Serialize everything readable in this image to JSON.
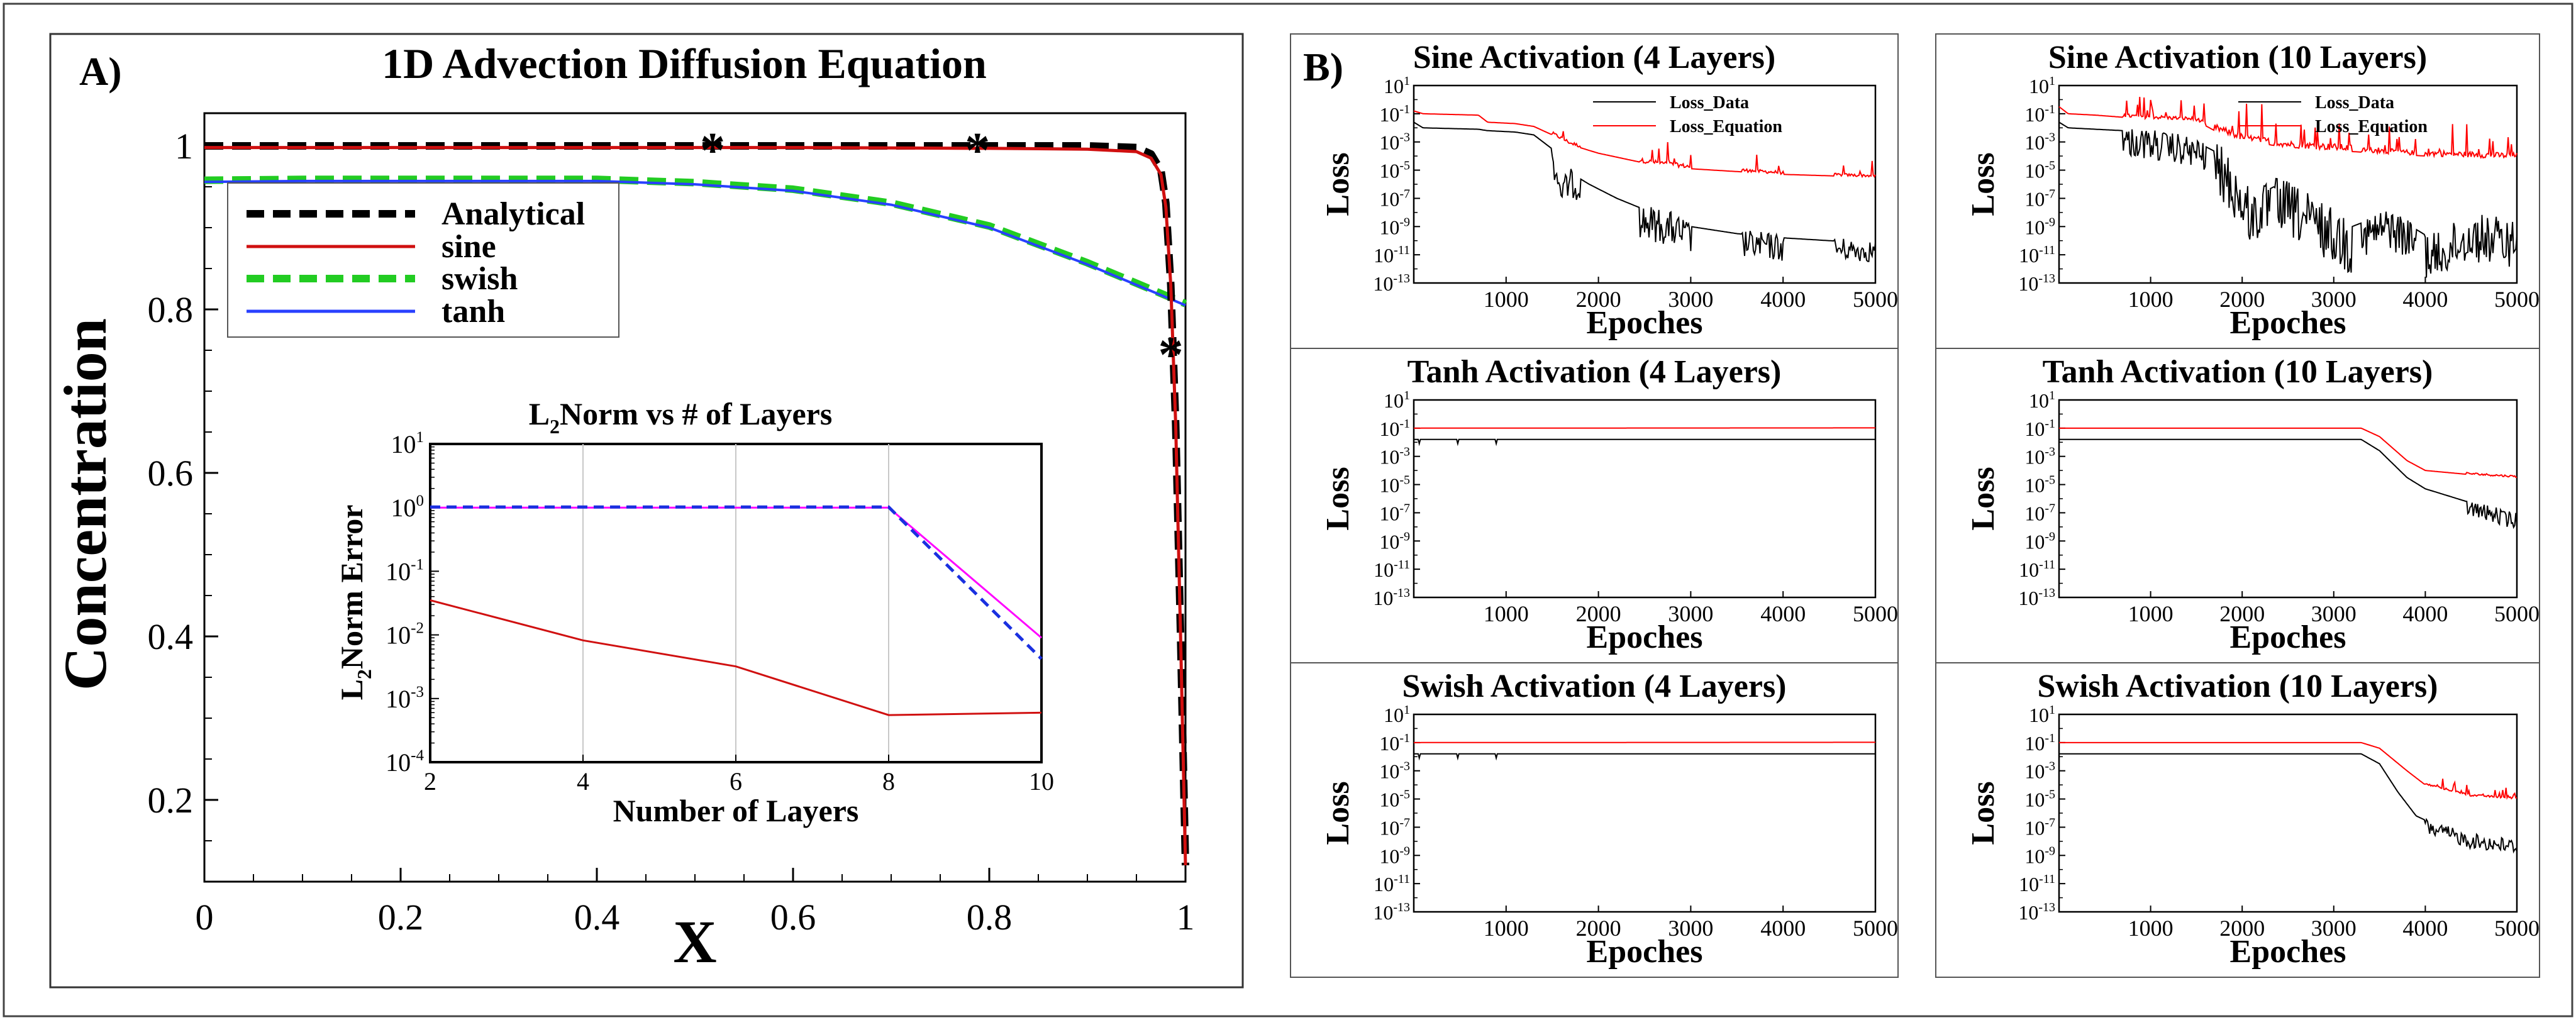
{
  "figure": {
    "panel_a_label": "A)",
    "panel_b_label": "B)"
  },
  "chart_data": [
    {
      "type": "line",
      "title": "1D Advection Diffusion Equation",
      "xlabel": "X",
      "ylabel": "Concentration",
      "xlim": [
        0,
        1
      ],
      "ylim": [
        0.1,
        1.04
      ],
      "xticks": [
        "0",
        "0.2",
        "0.4",
        "0.6",
        "0.8",
        "1"
      ],
      "xtick_values": [
        0,
        0.2,
        0.4,
        0.6,
        0.8,
        1
      ],
      "yticks": [
        "0.2",
        "0.4",
        "0.6",
        "0.8",
        "1"
      ],
      "ytick_values": [
        0.2,
        0.4,
        0.6,
        0.8,
        1
      ],
      "legend_position": "top-left",
      "series": [
        {
          "name": "Analytical",
          "color": "#000000",
          "dashed": true,
          "x": [
            0,
            0.2,
            0.4,
            0.6,
            0.8,
            0.9,
            0.95,
            0.965,
            0.975,
            0.98,
            0.985,
            0.99,
            0.995,
            1.0
          ],
          "y": [
            1.0,
            1.0,
            1.0,
            1.0,
            1.0,
            1.0,
            0.998,
            0.99,
            0.97,
            0.93,
            0.83,
            0.66,
            0.4,
            0.12
          ]
        },
        {
          "name": "sine",
          "color": "#d01010",
          "dashed": false,
          "x": [
            0,
            0.2,
            0.4,
            0.6,
            0.8,
            0.9,
            0.95,
            0.965,
            0.975,
            0.98,
            0.985,
            0.99,
            0.995,
            1.0
          ],
          "y": [
            0.998,
            0.998,
            0.998,
            0.998,
            0.997,
            0.996,
            0.993,
            0.985,
            0.965,
            0.925,
            0.83,
            0.66,
            0.4,
            0.12
          ]
        },
        {
          "name": "swish",
          "color": "#22cc22",
          "dashed": true,
          "x": [
            0,
            0.1,
            0.2,
            0.3,
            0.4,
            0.5,
            0.6,
            0.7,
            0.8,
            0.9,
            1.0
          ],
          "y": [
            0.958,
            0.959,
            0.959,
            0.959,
            0.959,
            0.955,
            0.947,
            0.93,
            0.902,
            0.857,
            0.807
          ]
        },
        {
          "name": "tanh",
          "color": "#2840ff",
          "dashed": false,
          "x": [
            0,
            0.1,
            0.2,
            0.3,
            0.4,
            0.5,
            0.6,
            0.7,
            0.8,
            0.9,
            1.0
          ],
          "y": [
            0.956,
            0.957,
            0.957,
            0.957,
            0.957,
            0.953,
            0.945,
            0.928,
            0.9,
            0.855,
            0.805
          ]
        }
      ],
      "markers": {
        "symbol": "*",
        "x": [
          0.518,
          0.788,
          0.985
        ],
        "y": [
          1.0,
          1.0,
          0.75
        ]
      }
    },
    {
      "type": "line",
      "title": "L2Norm vs # of Layers",
      "xlabel": "Number of Layers",
      "ylabel": "L2Norm Error",
      "xlim": [
        2,
        10
      ],
      "ylim_log10": [
        -4,
        1
      ],
      "yscale": "log",
      "xticks": [
        "2",
        "4",
        "6",
        "8",
        "10"
      ],
      "ytick_exponents": [
        "1",
        "0",
        "-1",
        "-2",
        "-3",
        "-4"
      ],
      "grid": "vertical",
      "series": [
        {
          "color": "#d01010",
          "dashed": false,
          "x": [
            2,
            4,
            6,
            8,
            10
          ],
          "y": [
            0.035,
            0.0082,
            0.0032,
            0.00055,
            0.0006
          ]
        },
        {
          "color": "#ff00ff",
          "dashed": false,
          "x": [
            2,
            4,
            6,
            8,
            10
          ],
          "y": [
            1.0,
            1.0,
            1.0,
            1.0,
            0.009
          ]
        },
        {
          "color": "#1a30e0",
          "dashed": true,
          "x": [
            2,
            4,
            6,
            8,
            10
          ],
          "y": [
            1.02,
            1.02,
            1.02,
            1.02,
            0.0042
          ]
        }
      ]
    }
  ],
  "loss_panels": {
    "ylabel": "Loss",
    "xlabel": "Epoches",
    "xticks": [
      "1000",
      "2000",
      "3000",
      "4000",
      "5000"
    ],
    "ytick_exponents": [
      "1",
      "-1",
      "-3",
      "-5",
      "-7",
      "-9",
      "-11",
      "-13"
    ],
    "ylim_log10": [
      -13,
      1
    ],
    "xlim": [
      0,
      5000
    ],
    "legend": {
      "data": "Loss_Data",
      "equation": "Loss_Equation"
    },
    "panels": [
      {
        "title": "Sine Activation (4 Layers)",
        "legend": true,
        "equation": {
          "x": [
            0,
            100,
            700,
            800,
            1100,
            1300,
            1500,
            1700,
            2000,
            2500,
            3000,
            4000,
            5000
          ],
          "y": [
            -0.8,
            -1.0,
            -1.1,
            -1.6,
            -1.7,
            -1.9,
            -2.5,
            -3.2,
            -3.8,
            -4.5,
            -4.9,
            -5.3,
            -5.5
          ]
        },
        "data": {
          "x": [
            0,
            100,
            700,
            800,
            1100,
            1300,
            1500,
            1600,
            1700,
            1900,
            2200,
            2500,
            2800,
            3000,
            3500,
            4000,
            4500,
            5000
          ],
          "y": [
            -1.6,
            -2.0,
            -2.1,
            -2.2,
            -2.3,
            -2.5,
            -3.5,
            -5.8,
            -5.2,
            -6.0,
            -7.0,
            -7.8,
            -8.3,
            -9.0,
            -9.5,
            -9.8,
            -10.0,
            -10.2
          ]
        },
        "noise": [
          [
            1500,
            1800,
            2.0
          ],
          [
            2450,
            3000,
            2.5
          ],
          [
            3550,
            4000,
            2.0
          ],
          [
            4550,
            5000,
            1.6
          ]
        ]
      },
      {
        "title": "Sine Activation (10 Layers)",
        "legend": true,
        "equation": {
          "x": [
            0,
            100,
            400,
            800,
            1500,
            1700,
            2000,
            2500,
            3000,
            3500,
            4000,
            5000
          ],
          "y": [
            -0.5,
            -1.0,
            -1.1,
            -1.3,
            -1.5,
            -2.2,
            -2.9,
            -3.4,
            -3.6,
            -3.8,
            -4.0,
            -4.2
          ]
        },
        "data": {
          "x": [
            0,
            100,
            700,
            1000,
            1500,
            1800,
            2100,
            2400,
            2800,
            3200,
            3600,
            4100,
            4500,
            5000
          ],
          "y": [
            -1.6,
            -2.0,
            -2.2,
            -2.4,
            -3.0,
            -4.0,
            -7.0,
            -6.0,
            -7.5,
            -9.0,
            -8.0,
            -10.0,
            -8.5,
            -9.0
          ]
        },
        "noise": [
          [
            700,
            1600,
            2.2
          ],
          [
            1700,
            2300,
            4.0
          ],
          [
            2350,
            3200,
            4.0
          ],
          [
            3300,
            3900,
            3.0
          ],
          [
            4000,
            5000,
            3.5
          ]
        ]
      },
      {
        "title": "Tanh Activation (4 Layers)",
        "legend": false,
        "equation": {
          "x": [
            0,
            5000
          ],
          "y": [
            -1.0,
            -0.98
          ]
        },
        "data": {
          "x": [
            0,
            5000
          ],
          "y": [
            -1.8,
            -1.8
          ]
        },
        "noise": []
      },
      {
        "title": "Tanh Activation (10 Layers)",
        "legend": false,
        "equation": {
          "x": [
            0,
            3300,
            3500,
            3800,
            4000,
            4500,
            5000
          ],
          "y": [
            -1.0,
            -1.0,
            -1.6,
            -3.3,
            -4.0,
            -4.3,
            -4.5
          ]
        },
        "data": {
          "x": [
            0,
            3300,
            3500,
            3800,
            4000,
            4500,
            5000
          ],
          "y": [
            -1.8,
            -1.8,
            -2.6,
            -4.5,
            -5.3,
            -6.3,
            -7.2
          ]
        },
        "noise": [
          [
            4450,
            5000,
            1.2
          ]
        ]
      },
      {
        "title": "Swish Activation (4 Layers)",
        "legend": false,
        "equation": {
          "x": [
            0,
            5000
          ],
          "y": [
            -1.0,
            -0.98
          ]
        },
        "data": {
          "x": [
            0,
            5000
          ],
          "y": [
            -1.8,
            -1.8
          ]
        },
        "noise": []
      },
      {
        "title": "Swish Activation (10 Layers)",
        "legend": false,
        "equation": {
          "x": [
            0,
            3300,
            3500,
            3800,
            4000,
            4500,
            5000
          ],
          "y": [
            -1.0,
            -1.0,
            -1.4,
            -3.0,
            -4.0,
            -4.8,
            -5.0
          ]
        },
        "data": {
          "x": [
            0,
            3300,
            3500,
            3700,
            3900,
            4100,
            4500,
            5000
          ],
          "y": [
            -1.8,
            -1.8,
            -2.5,
            -4.5,
            -6.2,
            -6.8,
            -7.6,
            -8.0
          ]
        },
        "noise": [
          [
            4000,
            5000,
            1.1
          ]
        ]
      }
    ]
  }
}
